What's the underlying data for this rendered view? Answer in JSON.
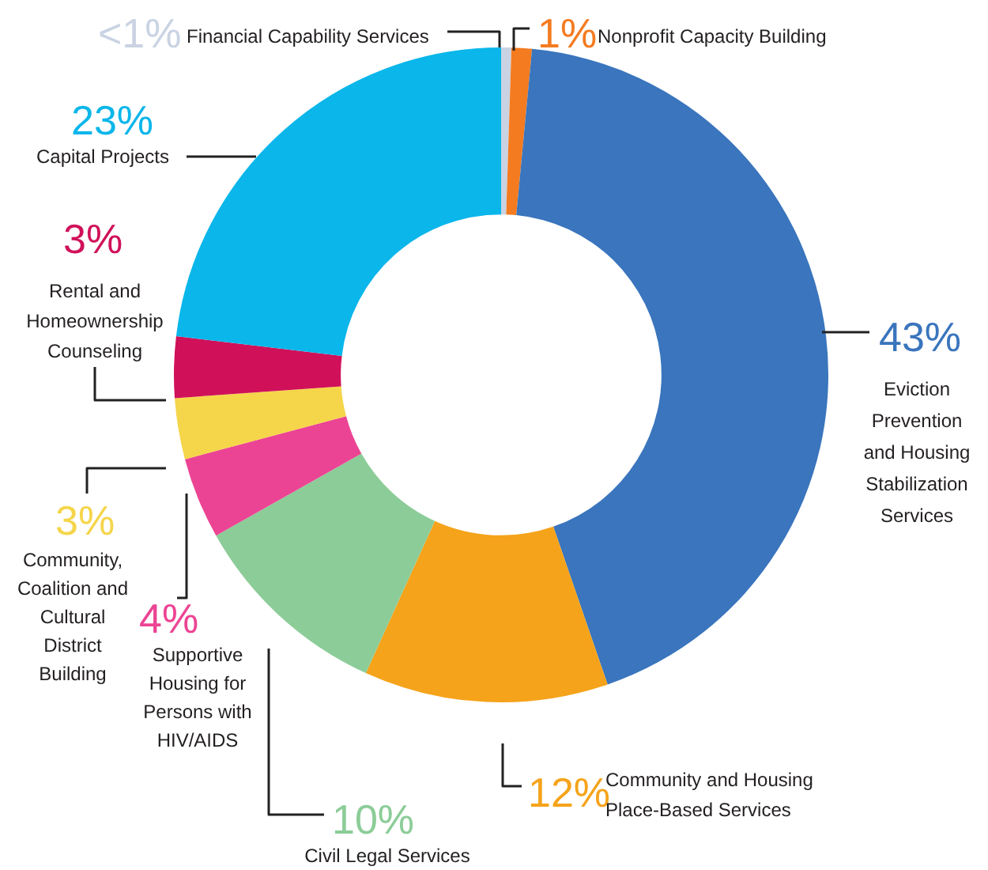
{
  "chart_data": {
    "type": "donut",
    "categories": [
      "Financial Capability Services",
      "Nonprofit Capacity Building",
      "Eviction Prevention and Housing Stabilization Services",
      "Community and Housing Place-Based Services",
      "Civil Legal Services",
      "Supportive Housing for Persons with HIV/AIDS",
      "Community, Coalition and Cultural District Building",
      "Rental and Homeownership Counseling",
      "Capital Projects"
    ],
    "values": [
      0.5,
      1,
      43,
      12,
      10,
      4,
      3,
      3,
      23
    ],
    "value_labels": [
      "<1%",
      "1%",
      "43%",
      "12%",
      "10%",
      "4%",
      "3%",
      "3%",
      "23%"
    ],
    "colors": [
      "#c9d3e3",
      "#f47b20",
      "#3a75bd",
      "#f5a31a",
      "#8ccc98",
      "#ec4494",
      "#f5d54a",
      "#d0115a",
      "#0ab6ea"
    ],
    "legend": false
  }
}
